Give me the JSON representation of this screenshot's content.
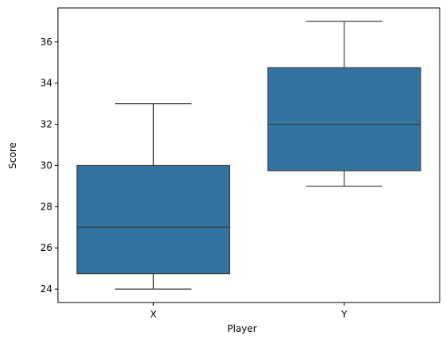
{
  "chart_data": {
    "type": "box",
    "xlabel": "Player",
    "ylabel": "Score",
    "categories": [
      "X",
      "Y"
    ],
    "boxes": [
      {
        "category": "X",
        "whisker_low": 24,
        "q1": 24.75,
        "median": 27,
        "q3": 30,
        "whisker_high": 33
      },
      {
        "category": "Y",
        "whisker_low": 29,
        "q1": 29.75,
        "median": 32,
        "q3": 34.75,
        "whisker_high": 37
      }
    ],
    "ylim": [
      23.35,
      37.65
    ],
    "yticks": [
      24,
      26,
      28,
      30,
      32,
      34,
      36
    ],
    "grid": false,
    "colors": {
      "box_fill": "#3274a1",
      "box_line": "#3d3d3d",
      "axis": "#000000"
    }
  }
}
